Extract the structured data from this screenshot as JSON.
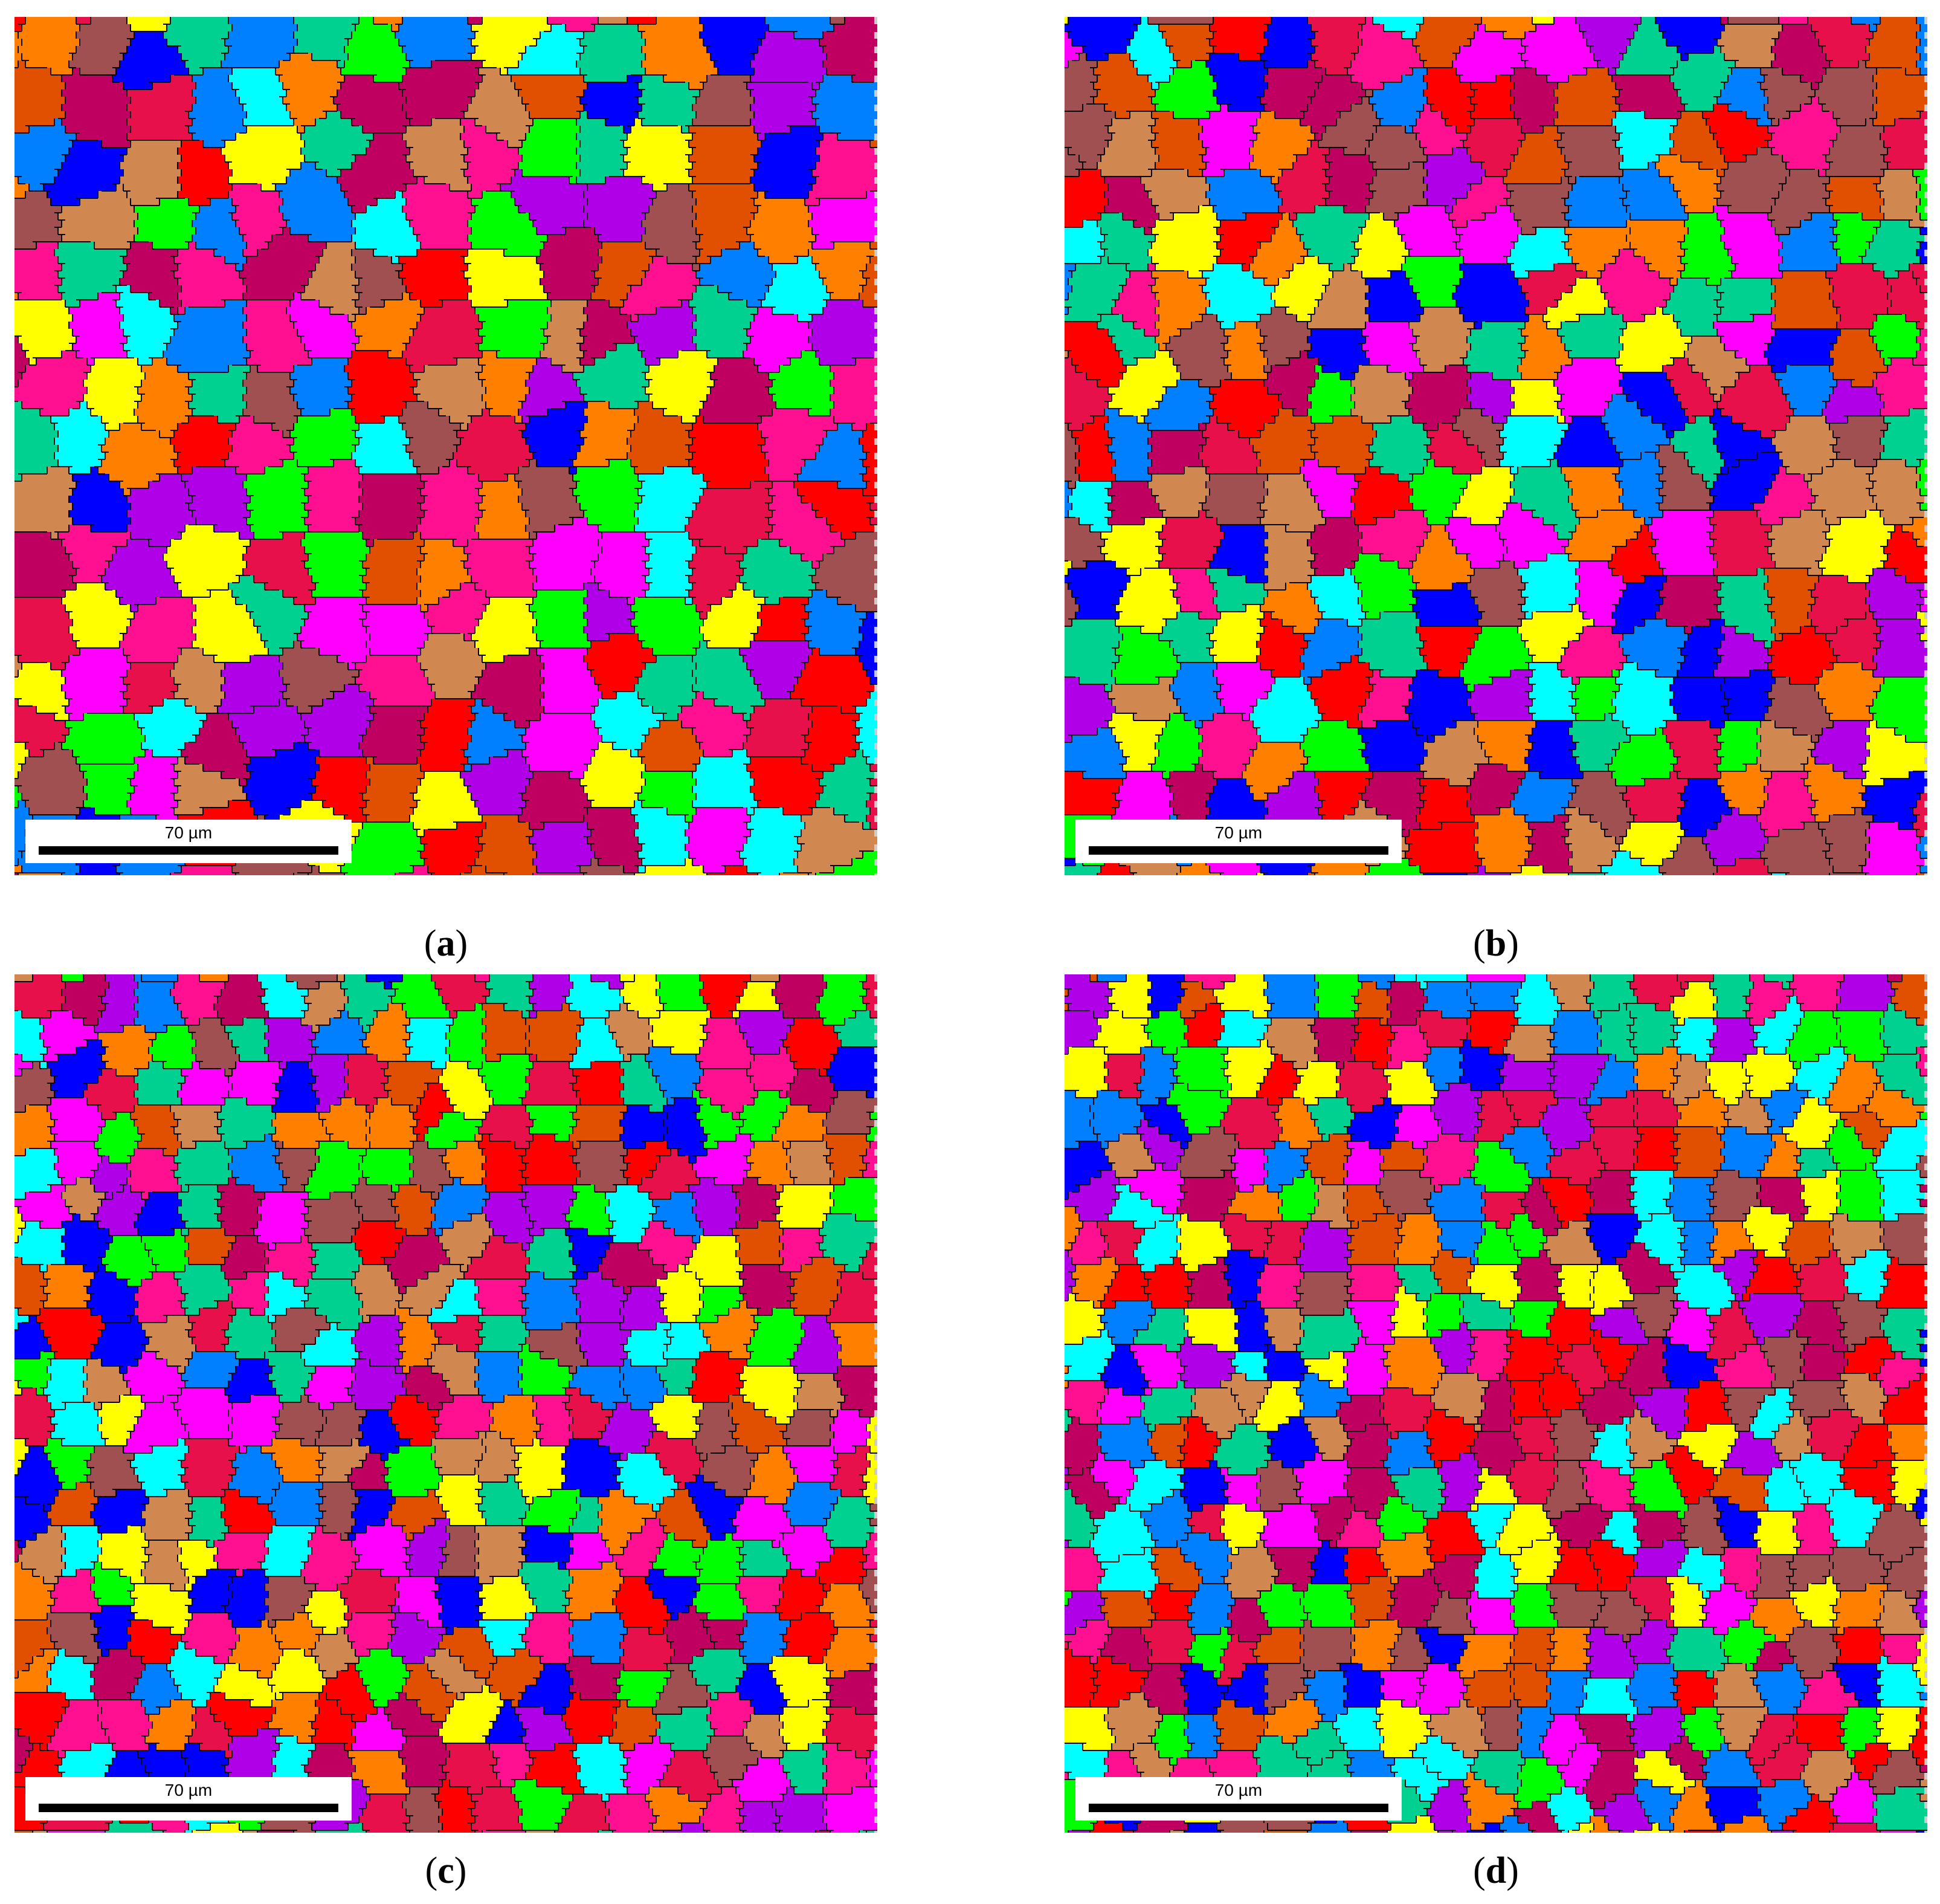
{
  "panels": [
    {
      "id": "a",
      "scale_label": "70 µm",
      "caption_letter": "a",
      "palette": [
        "#ff8000",
        "#e8104a",
        "#0000ff",
        "#ff00ff",
        "#ffff00",
        "#00ffff",
        "#00ff00",
        "#b000e8",
        "#00d090",
        "#a05050",
        "#e05000",
        "#0080ff",
        "#d08850",
        "#ff0000",
        "#c00060",
        "#ff1090"
      ]
    },
    {
      "id": "b",
      "scale_label": "70 µm",
      "caption_letter": "b",
      "palette": [
        "#ff8000",
        "#e8104a",
        "#0000ff",
        "#ff00ff",
        "#ffff00",
        "#00ffff",
        "#00ff00",
        "#b000e8",
        "#00d090",
        "#a05050",
        "#e05000",
        "#0080ff",
        "#d08850",
        "#ff0000",
        "#c00060",
        "#ff1090"
      ]
    },
    {
      "id": "c",
      "scale_label": "70 µm",
      "caption_letter": "c",
      "palette": [
        "#ff8000",
        "#e8104a",
        "#0000ff",
        "#ff00ff",
        "#ffff00",
        "#00ffff",
        "#00ff00",
        "#b000e8",
        "#00d090",
        "#a05050",
        "#e05000",
        "#0080ff",
        "#d08850",
        "#ff0000",
        "#c00060",
        "#ff1090"
      ]
    },
    {
      "id": "d",
      "scale_label": "70 µm",
      "caption_letter": "d",
      "palette": [
        "#ff8000",
        "#e8104a",
        "#0000ff",
        "#ff00ff",
        "#ffff00",
        "#00ffff",
        "#00ff00",
        "#b000e8",
        "#00d090",
        "#a05050",
        "#e05000",
        "#0080ff",
        "#d08850",
        "#ff0000",
        "#c00060",
        "#ff1090"
      ]
    }
  ],
  "captions": {
    "open_paren": "(",
    "close_paren": ")"
  }
}
